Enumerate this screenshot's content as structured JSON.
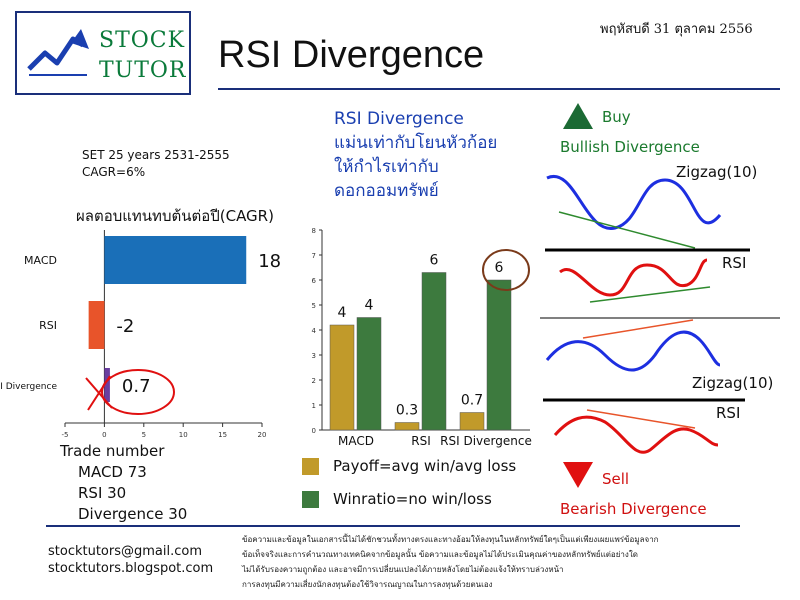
{
  "header": {
    "logo_line1": "STOCK",
    "logo_line2": "TUTOR",
    "title": "RSI Divergence",
    "date": "พฤหัสบดี 31 ตุลาคม 2556"
  },
  "center_heading": {
    "line1": "RSI Divergence",
    "line2": "แม่นเท่ากับโยนหัวก้อย",
    "line3": "ให้กำไรเท่ากับ",
    "line4": "ดอกออมทรัพย์"
  },
  "left_info": {
    "line1": "SET 25 years 2531-2555",
    "line2": "CAGR=6%"
  },
  "trade_number": {
    "title": "Trade number",
    "items": [
      "MACD 73",
      "RSI 30",
      "Divergence 30"
    ]
  },
  "legend": {
    "payoff": "Payoff=avg win/avg loss",
    "winratio": "Winratio=no win/loss"
  },
  "diagram": {
    "buy": "Buy",
    "bullish": "Bullish Divergence",
    "sell": "Sell",
    "bearish": "Bearish Divergence",
    "zigzag_top": "Zigzag(10)",
    "rsi_top": "RSI",
    "zigzag_bottom": "Zigzag(10)",
    "rsi_bottom": "RSI"
  },
  "footer": {
    "email": "stocktutors@gmail.com",
    "blog": "stocktutors.blogspot.com",
    "disclaimer": [
      "ข้อความและข้อมูลในเอกสารนี้ไม่ได้ชักชวนทั้งทางตรงและทางอ้อมให้ลงทุนในหลักทรัพย์ใดๆเป็นแต่เพียงเผยแพร่ข้อมูลจาก",
      "ข้อเท็จจริงและการคำนวณทางเทคนิคจากข้อมูลนั้น ข้อความและข้อมูลไม่ได้ประเมินคุณค่าของหลักทรัพย์แต่อย่างใด",
      "ไม่ได้รับรองความถูกต้อง และอาจมีการเปลี่ยนแปลงได้ภายหลังโดยไม่ต้องแจ้งให้ทราบล่วงหน้า",
      "การลงทุนมีความเสี่ยงนักลงทุนต้องใช้วิจารณญาณในการลงทุนด้วยตนเอง"
    ]
  },
  "colors": {
    "macd_bar": "#1a6fb8",
    "rsi_bar": "#e8542a",
    "divergence_bar": "#6a3ea0",
    "payoff": "#c19a2a",
    "winratio": "#3d7a3e",
    "buy": "#1b6a34",
    "sell": "#e01010"
  },
  "chart_data": [
    {
      "type": "bar",
      "orientation": "horizontal",
      "title": "ผลตอบแทนทบต้นต่อปี(CAGR)",
      "categories": [
        "MACD",
        "RSI",
        "RSI Divergence"
      ],
      "values": [
        18,
        -2,
        0.7
      ],
      "value_labels": [
        "18",
        "-2",
        "0.7"
      ],
      "xlim": [
        -5,
        20
      ],
      "xticks": [
        -5,
        0,
        5,
        10,
        15,
        20
      ],
      "grid": false
    },
    {
      "type": "bar",
      "categories": [
        "MACD",
        "RSI",
        "RSI Divergence"
      ],
      "series": [
        {
          "name": "Payoff=avg win/avg loss",
          "values": [
            4.2,
            0.3,
            0.7
          ],
          "labels": [
            "4",
            "0.3",
            "0.7"
          ]
        },
        {
          "name": "Winratio=no win/loss",
          "values": [
            4.5,
            6.3,
            6.0
          ],
          "labels": [
            "4",
            "6",
            "6"
          ]
        }
      ],
      "ylim": [
        0,
        8
      ],
      "yticks": [
        0,
        1,
        2,
        3,
        4,
        5,
        6,
        7,
        8
      ],
      "grid": false
    }
  ]
}
